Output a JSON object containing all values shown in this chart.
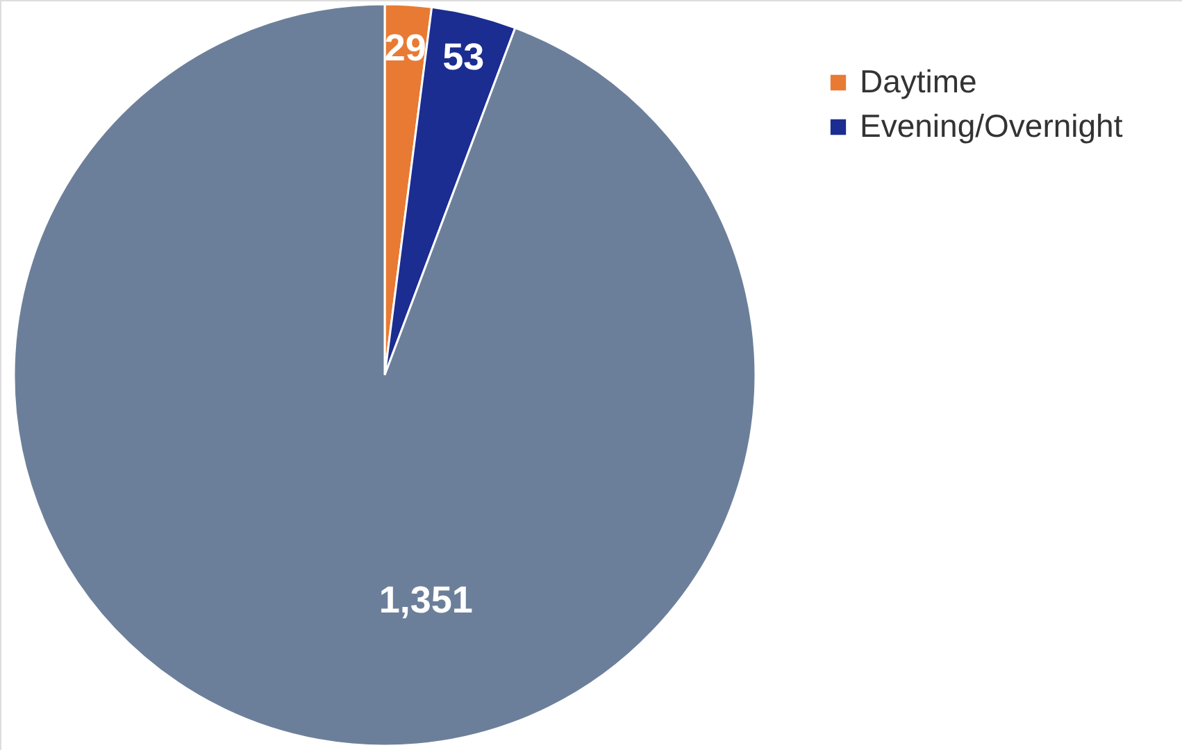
{
  "chart_data": {
    "type": "pie",
    "categories": [
      "Daytime",
      "Evening/Overnight",
      null
    ],
    "values": [
      29,
      53,
      1351
    ],
    "value_labels": [
      "29",
      "53",
      "1,351"
    ],
    "colors": [
      "#e97a33",
      "#1b2d91",
      "#6c7f9a"
    ],
    "legend": "top right"
  }
}
